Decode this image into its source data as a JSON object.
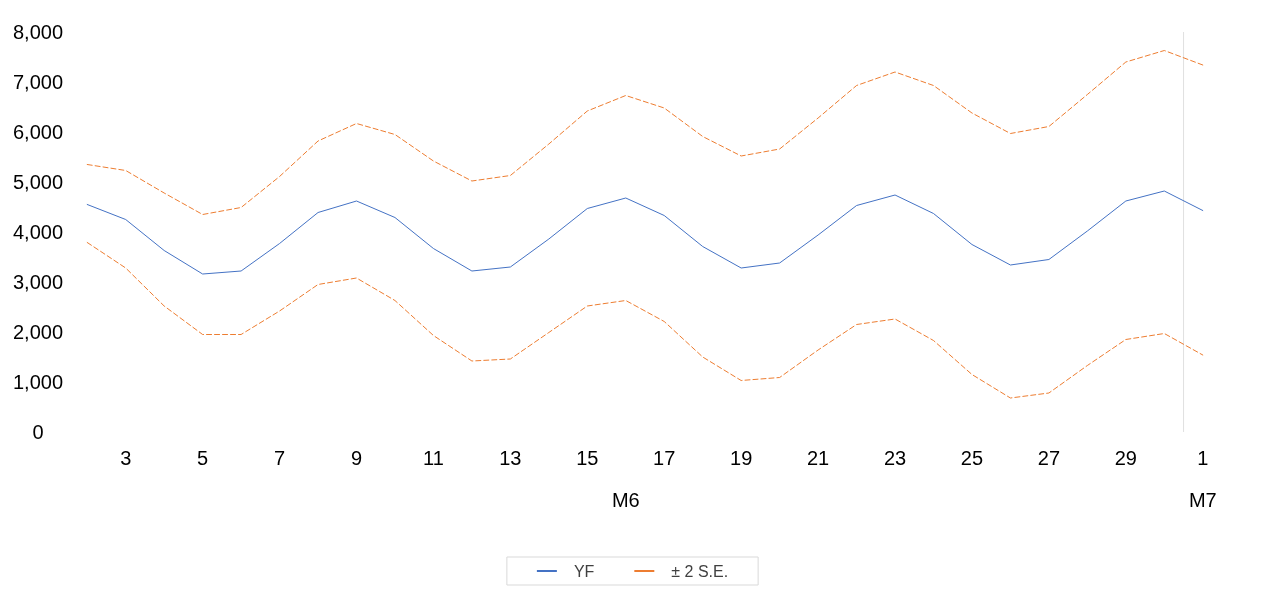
{
  "chart_data": {
    "type": "line",
    "categories": [
      null,
      "3",
      null,
      "5",
      null,
      "7",
      null,
      "9",
      null,
      "11",
      null,
      "13",
      null,
      "15",
      null,
      "17",
      null,
      "19",
      null,
      "21",
      null,
      "23",
      null,
      "25",
      null,
      "27",
      null,
      "29",
      null,
      "1"
    ],
    "series": [
      {
        "name": "YF",
        "color": "#4472c4",
        "line_style": "solid",
        "values": [
          4550,
          4250,
          3630,
          3160,
          3220,
          3770,
          4390,
          4620,
          4290,
          3670,
          3220,
          3300,
          3860,
          4470,
          4680,
          4330,
          3710,
          3280,
          3380,
          3940,
          4530,
          4740,
          4370,
          3750,
          3340,
          3450,
          4020,
          4620,
          4820,
          4430
        ]
      },
      {
        "name": "± 2 S.E.",
        "color": "#ed7d31",
        "line_style": "dashed",
        "values": [
          5350,
          5230,
          4780,
          4350,
          4490,
          5110,
          5820,
          6170,
          5950,
          5420,
          5020,
          5130,
          5760,
          6420,
          6730,
          6480,
          5910,
          5520,
          5660,
          6280,
          6930,
          7200,
          6930,
          6380,
          5970,
          6110,
          6750,
          7400,
          7630,
          7340
        ]
      },
      {
        "color": "#ed7d31",
        "line_style": "dashed",
        "values": [
          3790,
          3280,
          2520,
          1950,
          1950,
          2420,
          2950,
          3080,
          2630,
          1930,
          1420,
          1460,
          1990,
          2520,
          2630,
          2210,
          1500,
          1030,
          1090,
          1640,
          2150,
          2260,
          1830,
          1150,
          680,
          780,
          1330,
          1850,
          1970,
          1540
        ]
      }
    ],
    "ylim": [
      0,
      8000
    ],
    "yticks": [
      0,
      {
        "value": 1000,
        "label": "1,000"
      },
      {
        "value": 2000,
        "label": "2,000"
      },
      {
        "value": 3000,
        "label": "3,000"
      },
      {
        "value": 4000,
        "label": "4,000"
      },
      {
        "value": 5000,
        "label": "5,000"
      },
      {
        "value": 6000,
        "label": "6,000"
      },
      {
        "value": 7000,
        "label": "7,000"
      },
      {
        "value": 8000,
        "label": "8,000"
      }
    ],
    "annotations": [
      "M6",
      "M7"
    ],
    "grid": false,
    "legend": "bottom",
    "marker": "none"
  }
}
